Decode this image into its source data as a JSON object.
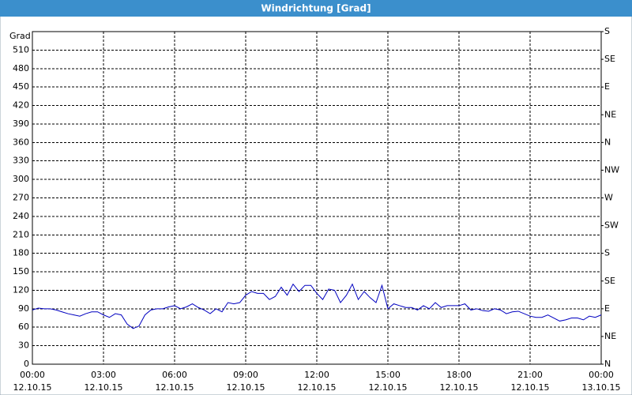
{
  "chart_data": {
    "type": "line",
    "title": "Windrichtung [Grad]",
    "y_label": "Grad",
    "x": [
      0,
      0.25,
      0.5,
      0.75,
      1,
      1.25,
      1.5,
      1.75,
      2,
      2.25,
      2.5,
      2.75,
      3,
      3.25,
      3.5,
      3.75,
      4,
      4.25,
      4.5,
      4.75,
      5,
      5.25,
      5.5,
      5.75,
      6,
      6.25,
      6.5,
      6.75,
      7,
      7.25,
      7.5,
      7.75,
      8,
      8.25,
      8.5,
      8.75,
      9,
      9.25,
      9.5,
      9.75,
      10,
      10.25,
      10.5,
      10.75,
      11,
      11.25,
      11.5,
      11.75,
      12,
      12.25,
      12.5,
      12.75,
      13,
      13.25,
      13.5,
      13.75,
      14,
      14.25,
      14.5,
      14.75,
      15,
      15.25,
      15.5,
      15.75,
      16,
      16.25,
      16.5,
      16.75,
      17,
      17.25,
      17.5,
      17.75,
      18,
      18.25,
      18.5,
      18.75,
      19,
      19.25,
      19.5,
      19.75,
      20,
      20.25,
      20.5,
      20.75,
      21,
      21.25,
      21.5,
      21.75,
      22,
      22.25,
      22.5,
      22.75,
      23,
      23.25,
      23.5,
      23.75,
      24
    ],
    "series": [
      {
        "name": "Windrichtung",
        "color": "#0000c0",
        "values": [
          88,
          91,
          90,
          90,
          88,
          85,
          82,
          80,
          78,
          82,
          85,
          85,
          80,
          76,
          82,
          80,
          65,
          58,
          62,
          80,
          88,
          90,
          90,
          93,
          95,
          90,
          93,
          98,
          92,
          88,
          82,
          90,
          85,
          100,
          98,
          100,
          112,
          118,
          115,
          115,
          105,
          110,
          125,
          112,
          130,
          118,
          128,
          128,
          115,
          105,
          122,
          120,
          100,
          112,
          130,
          105,
          118,
          108,
          100,
          128,
          90,
          98,
          95,
          92,
          92,
          88,
          95,
          90,
          100,
          92,
          95,
          95,
          95,
          98,
          88,
          90,
          87,
          86,
          90,
          88,
          82,
          85,
          86,
          82,
          78,
          76,
          76,
          80,
          75,
          70,
          72,
          75,
          75,
          72,
          78,
          76,
          80
        ]
      }
    ],
    "xlim": [
      0,
      24
    ],
    "xticks": [
      {
        "value": 0,
        "label": "00:00",
        "date": "12.10.15"
      },
      {
        "value": 3,
        "label": "03:00",
        "date": "12.10.15"
      },
      {
        "value": 6,
        "label": "06:00",
        "date": "12.10.15"
      },
      {
        "value": 9,
        "label": "09:00",
        "date": "12.10.15"
      },
      {
        "value": 12,
        "label": "12:00",
        "date": "12.10.15"
      },
      {
        "value": 15,
        "label": "15:00",
        "date": "12.10.15"
      },
      {
        "value": 18,
        "label": "18:00",
        "date": "12.10.15"
      },
      {
        "value": 21,
        "label": "21:00",
        "date": "12.10.15"
      },
      {
        "value": 24,
        "label": "00:00",
        "date": "13.10.15"
      }
    ],
    "ylim": [
      0,
      540
    ],
    "yticks": [
      0,
      30,
      60,
      90,
      120,
      150,
      180,
      210,
      240,
      270,
      300,
      330,
      360,
      390,
      420,
      450,
      480,
      510
    ],
    "y2lim": [
      0,
      540
    ],
    "y2ticks": [
      {
        "value": 0,
        "label": "N"
      },
      {
        "value": 45,
        "label": "NE"
      },
      {
        "value": 90,
        "label": "E"
      },
      {
        "value": 135,
        "label": "SE"
      },
      {
        "value": 180,
        "label": "S"
      },
      {
        "value": 225,
        "label": "SW"
      },
      {
        "value": 270,
        "label": "W"
      },
      {
        "value": 315,
        "label": "NW"
      },
      {
        "value": 360,
        "label": "N"
      },
      {
        "value": 405,
        "label": "NE"
      },
      {
        "value": 450,
        "label": "E"
      },
      {
        "value": 495,
        "label": "SE"
      },
      {
        "value": 540,
        "label": "S"
      }
    ],
    "grid": true
  }
}
